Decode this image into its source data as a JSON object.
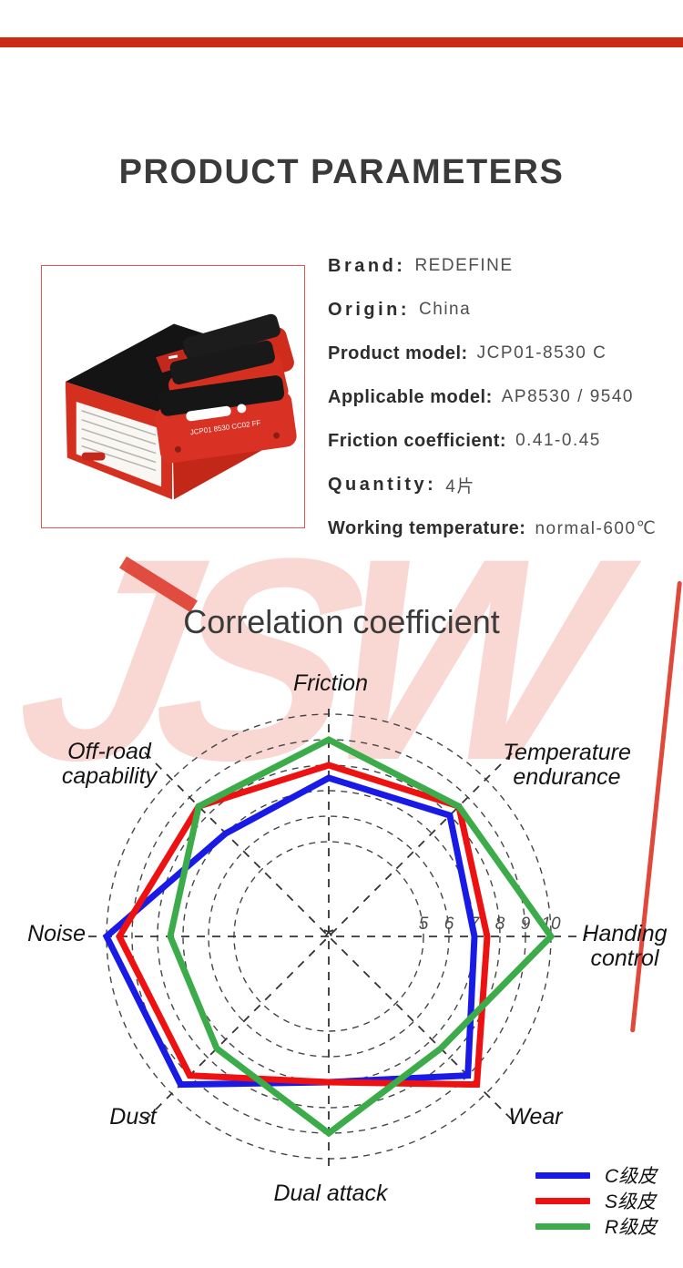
{
  "header": {
    "bar_color": "#cb2a15"
  },
  "section1": {
    "title": "PRODUCT PARAMETERS"
  },
  "product_image": {
    "description": "red brake-pad retail box with three red brake pads",
    "border_color": "#e2574b"
  },
  "parameters": [
    {
      "label": "Brand:",
      "value": "REDEFINE"
    },
    {
      "label": "Origin:",
      "value": "China"
    },
    {
      "label": "Product model:",
      "value": "JCP01-8530 C"
    },
    {
      "label": "Applicable model:",
      "value": "AP8530 / 9540"
    },
    {
      "label": "Friction coefficient:",
      "value": "0.41-0.45"
    },
    {
      "label": "Quantity:",
      "value": "4片"
    },
    {
      "label": "Working temperature:",
      "value": "normal-600℃"
    }
  ],
  "section2": {
    "title": "Correlation coefficient",
    "watermark": "JSW",
    "watermark_color": "#f9d8d3",
    "watermark_accent_color": "#dc3425"
  },
  "chart_data": {
    "type": "radar",
    "title": "Correlation coefficient",
    "axes": [
      "Friction",
      "Temperature endurance",
      "Handing control",
      "Wear",
      "Dual attack",
      "Dust",
      "Noise",
      "Off-road capability"
    ],
    "axis_angles_deg": [
      -90,
      -45,
      0,
      45,
      90,
      135,
      180,
      225
    ],
    "scale_ticks": [
      5,
      6,
      7,
      8,
      9,
      10
    ],
    "range_min": 0,
    "range_max": 10,
    "grid": "dashed concentric circles with dashed cross spokes",
    "legend_position": "bottom-right",
    "series": [
      {
        "name": "C级皮",
        "color": "#1a1ae6",
        "values": [
          7.5,
          8,
          7,
          9,
          7,
          9.5,
          10,
          7
        ]
      },
      {
        "name": "S级皮",
        "color": "#ee1111",
        "values": [
          8,
          8.5,
          7.5,
          9.5,
          7,
          9,
          9.5,
          8.5
        ]
      },
      {
        "name": "R级皮",
        "color": "#3cab49",
        "values": [
          9,
          8.5,
          10,
          7.5,
          9,
          7.5,
          7.5,
          8.5
        ]
      }
    ]
  }
}
